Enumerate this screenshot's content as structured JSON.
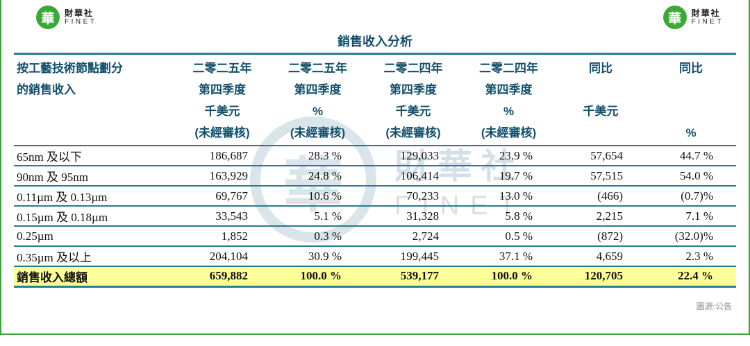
{
  "page": {
    "title": "銷售收入分析",
    "source_note": "圖源:公告"
  },
  "brand": {
    "logo_char": "華",
    "name_cn": "財華社",
    "name_en": "FINET"
  },
  "watermark": {
    "logo_char": "華",
    "name_cn": "財華社",
    "name_en": "FINET"
  },
  "colors": {
    "header_text": "#12506b",
    "table_rule": "#2a7d8e",
    "total_highlight": "#ffff99",
    "brand_green": "#3aa935",
    "frame_green": "#3aa13c",
    "source_note_gray": "#8c8c8c"
  },
  "table": {
    "header_cols": [
      {
        "lines": [
          "按工藝技術節點劃分",
          "的銷售收入",
          "",
          ""
        ]
      },
      {
        "lines": [
          "二零二五年",
          "第四季度",
          "千美元",
          "(未經審核)"
        ]
      },
      {
        "lines": [
          "二零二五年",
          "第四季度",
          "%",
          "(未經審核)"
        ]
      },
      {
        "lines": [
          "二零二四年",
          "第四季度",
          "千美元",
          "(未經審核)"
        ]
      },
      {
        "lines": [
          "二零二四年",
          "第四季度",
          "%",
          "(未經審核)"
        ]
      },
      {
        "lines": [
          "同比",
          "",
          "千美元",
          ""
        ]
      },
      {
        "lines": [
          "同比",
          "",
          "",
          "%"
        ]
      }
    ],
    "rows": [
      {
        "label": "65nm 及以下",
        "cells": [
          "186,687",
          "28.3 %",
          "129,033",
          "23.9 %",
          "57,654",
          "44.7 %"
        ]
      },
      {
        "label": "90nm 及 95nm",
        "cells": [
          "163,929",
          "24.8 %",
          "106,414",
          "19.7 %",
          "57,515",
          "54.0 %"
        ]
      },
      {
        "label": "0.11µm 及 0.13µm",
        "cells": [
          "69,767",
          "10.6 %",
          "70,233",
          "13.0 %",
          "(466)",
          "(0.7)%"
        ]
      },
      {
        "label": "0.15µm 及 0.18µm",
        "cells": [
          "33,543",
          "5.1 %",
          "31,328",
          "5.8 %",
          "2,215",
          "7.1 %"
        ]
      },
      {
        "label": "0.25µm",
        "cells": [
          "1,852",
          "0.3 %",
          "2,724",
          "0.5 %",
          "(872)",
          "(32.0)%"
        ]
      },
      {
        "label": "0.35µm 及以上",
        "cells": [
          "204,104",
          "30.9 %",
          "199,445",
          "37.1 %",
          "4,659",
          "2.3 %"
        ]
      }
    ],
    "total": {
      "label": "銷售收入總額",
      "cells": [
        "659,882",
        "100.0 %",
        "539,177",
        "100.0 %",
        "120,705",
        "22.4 %"
      ]
    }
  },
  "chart_data": {
    "type": "table",
    "title": "銷售收入分析",
    "columns": [
      "按工藝技術節點劃分的銷售收入",
      "二零二五年第四季度 千美元 (未經審核)",
      "二零二五年第四季度 % (未經審核)",
      "二零二四年第四季度 千美元 (未經審核)",
      "二零二四年第四季度 % (未經審核)",
      "同比 千美元",
      "同比 %"
    ],
    "rows": [
      [
        "65nm 及以下",
        186687,
        28.3,
        129033,
        23.9,
        57654,
        44.7
      ],
      [
        "90nm 及 95nm",
        163929,
        24.8,
        106414,
        19.7,
        57515,
        54.0
      ],
      [
        "0.11µm 及 0.13µm",
        69767,
        10.6,
        70233,
        13.0,
        -466,
        -0.7
      ],
      [
        "0.15µm 及 0.18µm",
        33543,
        5.1,
        31328,
        5.8,
        2215,
        7.1
      ],
      [
        "0.25µm",
        1852,
        0.3,
        2724,
        0.5,
        -872,
        -32.0
      ],
      [
        "0.35µm 及以上",
        204104,
        30.9,
        199445,
        37.1,
        4659,
        2.3
      ]
    ],
    "total_row": [
      "銷售收入總額",
      659882,
      100.0,
      539177,
      100.0,
      120705,
      22.4
    ],
    "source": "圖源:公告"
  }
}
